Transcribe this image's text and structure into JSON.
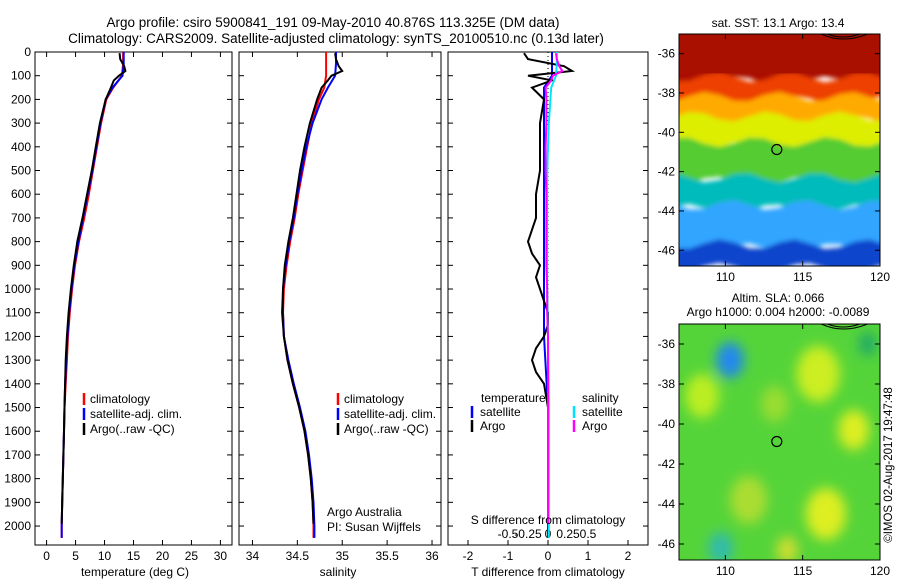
{
  "title_line1": "Argo profile: csiro 5900841_191 09-May-2010 40.876S 113.325E (DM data)",
  "title_line2": "Climatology: CARS2009. Satellite-adjusted climatology: synTS_20100510.nc (0.13d later)",
  "credit": "©IMOS 02-Aug-2017 19:47:48",
  "colors": {
    "climatology": "#ff0000",
    "satellite": "#0000ff",
    "argo": "#000000",
    "salinity_satellite": "#00e5ff",
    "salinity_argo": "#ff00ff"
  },
  "chart_data": [
    {
      "id": "temperature-profile",
      "type": "line",
      "xlabel": "temperature (deg C)",
      "ylabel": "",
      "xlim": [
        -2,
        32
      ],
      "ylim": [
        2080,
        0
      ],
      "xticks": [
        "0",
        "5",
        "10",
        "15",
        "20",
        "25",
        "30"
      ],
      "xtick_values": [
        0,
        5,
        10,
        15,
        20,
        25,
        30
      ],
      "yticks": [
        "0",
        "100",
        "200",
        "300",
        "400",
        "500",
        "600",
        "700",
        "800",
        "900",
        "1000",
        "1100",
        "1200",
        "1300",
        "1400",
        "1500",
        "1600",
        "1700",
        "1800",
        "1900",
        "2000"
      ],
      "ytick_values": [
        0,
        100,
        200,
        300,
        400,
        500,
        600,
        700,
        800,
        900,
        1000,
        1100,
        1200,
        1300,
        1400,
        1500,
        1600,
        1700,
        1800,
        1900,
        2000
      ],
      "legend": [
        "climatology",
        "satellite-adj. clim.",
        "Argo(..raw -QC)"
      ],
      "series": [
        {
          "name": "climatology",
          "depth": [
            0,
            50,
            100,
            150,
            200,
            300,
            400,
            500,
            600,
            700,
            800,
            900,
            1000,
            1100,
            1200,
            1300,
            1400,
            1500,
            1600,
            1700,
            1800,
            1900,
            2000,
            2050
          ],
          "values": [
            13.2,
            13.2,
            13.0,
            11.5,
            10.3,
            9.4,
            8.7,
            8.0,
            7.3,
            6.5,
            5.6,
            4.9,
            4.4,
            4.0,
            3.7,
            3.5,
            3.3,
            3.1,
            3.0,
            2.9,
            2.8,
            2.7,
            2.6,
            2.6
          ]
        },
        {
          "name": "satellite-adj. clim.",
          "depth": [
            0,
            50,
            100,
            150,
            200,
            300,
            400,
            500,
            600,
            700,
            800,
            900,
            1000,
            1100,
            1200,
            1300,
            1400,
            1500,
            1600,
            1700,
            1800,
            1900,
            2000,
            2050
          ],
          "values": [
            13.3,
            13.3,
            13.1,
            11.4,
            10.2,
            9.3,
            8.6,
            7.9,
            7.1,
            6.3,
            5.5,
            4.8,
            4.3,
            3.9,
            3.6,
            3.4,
            3.2,
            3.1,
            3.0,
            2.9,
            2.8,
            2.7,
            2.6,
            2.6
          ]
        },
        {
          "name": "Argo(..raw -QC)",
          "depth": [
            5,
            30,
            60,
            80,
            100,
            120,
            150,
            200,
            300,
            400,
            500,
            600,
            700,
            800,
            900,
            1000,
            1100,
            1200,
            1300,
            1400,
            1500,
            1600,
            1700,
            1800,
            1900,
            1990
          ],
          "values": [
            12.6,
            12.7,
            13.4,
            13.6,
            12.5,
            11.6,
            11.1,
            10.2,
            9.2,
            8.5,
            7.8,
            7.0,
            6.2,
            5.3,
            4.7,
            4.2,
            3.8,
            3.5,
            3.3,
            3.2,
            3.1,
            3.0,
            2.9,
            2.8,
            2.7,
            2.6
          ]
        }
      ]
    },
    {
      "id": "salinity-profile",
      "type": "line",
      "xlabel": "salinity",
      "xlim": [
        33.85,
        36.1
      ],
      "ylim": [
        2080,
        0
      ],
      "xticks": [
        "34",
        "34.5",
        "35",
        "35.5",
        "36"
      ],
      "xtick_values": [
        34,
        34.5,
        35,
        35.5,
        36
      ],
      "legend": [
        "climatology",
        "satellite-adj. clim.",
        "Argo(..raw -QC)"
      ],
      "annotation": [
        "Argo Australia",
        "PI: Susan Wijffels"
      ],
      "series": [
        {
          "name": "climatology",
          "depth": [
            0,
            50,
            100,
            150,
            200,
            300,
            400,
            500,
            600,
            700,
            800,
            900,
            1000,
            1100,
            1200,
            1300,
            1400,
            1500,
            1600,
            1700,
            1800,
            1900,
            2000,
            2050
          ],
          "values": [
            34.82,
            34.82,
            34.82,
            34.8,
            34.74,
            34.66,
            34.61,
            34.56,
            34.51,
            34.47,
            34.42,
            34.38,
            34.35,
            34.34,
            34.35,
            34.39,
            34.45,
            34.52,
            34.58,
            34.62,
            34.65,
            34.67,
            34.68,
            34.68
          ]
        },
        {
          "name": "satellite-adj. clim.",
          "depth": [
            0,
            50,
            100,
            150,
            200,
            300,
            400,
            500,
            600,
            700,
            800,
            900,
            1000,
            1100,
            1200,
            1300,
            1400,
            1500,
            1600,
            1700,
            1800,
            1900,
            2000,
            2050
          ],
          "values": [
            34.93,
            34.93,
            34.92,
            34.84,
            34.77,
            34.67,
            34.6,
            34.55,
            34.5,
            34.46,
            34.41,
            34.37,
            34.34,
            34.34,
            34.35,
            34.4,
            34.46,
            34.53,
            34.59,
            34.63,
            34.66,
            34.68,
            34.69,
            34.69
          ]
        },
        {
          "name": "Argo(..raw -QC)",
          "depth": [
            5,
            30,
            60,
            80,
            100,
            120,
            150,
            200,
            300,
            400,
            500,
            600,
            700,
            800,
            900,
            1000,
            1100,
            1200,
            1300,
            1400,
            1500,
            1600,
            1700,
            1800,
            1900,
            1990
          ],
          "values": [
            34.92,
            34.93,
            34.96,
            35.0,
            34.88,
            34.84,
            34.77,
            34.72,
            34.64,
            34.58,
            34.53,
            34.49,
            34.45,
            34.4,
            34.36,
            34.34,
            34.33,
            34.35,
            34.39,
            34.45,
            34.52,
            34.58,
            34.62,
            34.65,
            34.67,
            34.68
          ]
        }
      ]
    },
    {
      "id": "difference-profile",
      "type": "line",
      "xlabel": "T difference from climatology",
      "top_label": "S difference from climatology",
      "xlim": [
        -2.5,
        2.5
      ],
      "ylim": [
        2080,
        0
      ],
      "xticks": [
        "-2",
        "-1",
        "0",
        "1",
        "2"
      ],
      "xtick_values": [
        -2,
        -1,
        0,
        1,
        2
      ],
      "sticks": [
        "-0.5",
        "-0.25",
        "0",
        "0.25",
        "0.5"
      ],
      "stick_values": [
        -0.5,
        -0.25,
        0,
        0.25,
        0.5
      ],
      "legend_headers": [
        "temperature",
        "salinity"
      ],
      "legend": [
        "satellite",
        "Argo",
        "satellite",
        "Argo"
      ],
      "series": [
        {
          "name": "temperature satellite",
          "depth": [
            0,
            50,
            100,
            150,
            200,
            300,
            500,
            800,
            1000,
            1200,
            1500,
            2000,
            2050
          ],
          "values": [
            0.1,
            0.1,
            0.1,
            -0.1,
            -0.1,
            -0.1,
            -0.1,
            -0.1,
            -0.1,
            -0.1,
            0,
            0,
            0
          ]
        },
        {
          "name": "temperature Argo",
          "depth": [
            5,
            30,
            60,
            80,
            100,
            120,
            150,
            200,
            300,
            400,
            500,
            600,
            700,
            800,
            850,
            900,
            950,
            1000,
            1050,
            1100,
            1150,
            1200,
            1250,
            1300,
            1350,
            1400,
            1500,
            1600,
            1800,
            1990
          ],
          "values": [
            -0.6,
            -0.5,
            0.4,
            0.6,
            -0.5,
            0.1,
            -0.4,
            -0.1,
            -0.2,
            -0.2,
            -0.2,
            -0.3,
            -0.3,
            -0.5,
            -0.4,
            -0.2,
            -0.3,
            -0.2,
            -0.1,
            0,
            0,
            -0.1,
            -0.3,
            -0.4,
            -0.3,
            -0.1,
            0,
            0,
            0,
            0
          ]
        },
        {
          "name": "salinity satellite",
          "depth": [
            0,
            50,
            100,
            150,
            200,
            300,
            500,
            800,
            1000,
            1200,
            1500,
            2000,
            2050
          ],
          "values": [
            0.11,
            0.11,
            0.1,
            0.04,
            0.03,
            0.01,
            -0.01,
            -0.01,
            -0.01,
            0,
            0.01,
            0.01,
            0.01
          ]
        },
        {
          "name": "salinity Argo",
          "depth": [
            5,
            30,
            60,
            80,
            100,
            120,
            150,
            200,
            300,
            400,
            500,
            600,
            700,
            800,
            900,
            1000,
            1100,
            1200,
            1300,
            1400,
            1500,
            1700,
            1900,
            1990
          ],
          "values": [
            0.1,
            0.11,
            0.14,
            0.18,
            0.06,
            0.04,
            -0.03,
            -0.02,
            -0.02,
            -0.03,
            -0.03,
            -0.02,
            -0.02,
            -0.02,
            -0.02,
            -0.01,
            -0.01,
            0,
            0,
            0,
            0,
            0,
            0,
            0
          ]
        }
      ]
    },
    {
      "id": "sst-map",
      "type": "heatmap",
      "title": "sat. SST: 13.1  Argo: 13.4",
      "xlim": [
        107,
        120
      ],
      "ylim": [
        -46.8,
        -35
      ],
      "xticks": [
        "110",
        "115",
        "120"
      ],
      "xtick_values": [
        110,
        115,
        120
      ],
      "yticks": [
        "-36",
        "-38",
        "-40",
        "-42",
        "-44",
        "-46"
      ],
      "ytick_values": [
        -36,
        -38,
        -40,
        -42,
        -44,
        -46
      ],
      "float_position": [
        113.325,
        -40.876
      ],
      "color_bands": [
        {
          "lat_top": -35.0,
          "lat_bottom": -37.3,
          "color": "#aa1000"
        },
        {
          "lat_top": -37.3,
          "lat_bottom": -38.3,
          "color": "#ee4000"
        },
        {
          "lat_top": -38.3,
          "lat_bottom": -39.3,
          "color": "#ffaa00"
        },
        {
          "lat_top": -39.3,
          "lat_bottom": -40.6,
          "color": "#ddee00"
        },
        {
          "lat_top": -40.6,
          "lat_bottom": -42.4,
          "color": "#55cc33"
        },
        {
          "lat_top": -42.4,
          "lat_bottom": -43.8,
          "color": "#00bbbb"
        },
        {
          "lat_top": -43.8,
          "lat_bottom": -45.8,
          "color": "#33a5ff"
        },
        {
          "lat_top": -45.8,
          "lat_bottom": -46.8,
          "color": "#1144cc"
        }
      ]
    },
    {
      "id": "sla-map",
      "type": "heatmap",
      "title_line1": "Altim. SLA: 0.066",
      "title_line2": "Argo h1000: 0.004 h2000: -0.0089",
      "xlim": [
        107,
        120
      ],
      "ylim": [
        -46.8,
        -35
      ],
      "xticks": [
        "110",
        "115",
        "120"
      ],
      "xtick_values": [
        110,
        115,
        120
      ],
      "yticks": [
        "-36",
        "-38",
        "-40",
        "-42",
        "-44",
        "-46"
      ],
      "ytick_values": [
        -36,
        -38,
        -40,
        -42,
        -44,
        -46
      ],
      "float_position": [
        113.325,
        -40.876
      ],
      "base_color": "#55d43a",
      "blobs": [
        {
          "lon": 110.3,
          "lat": -36.8,
          "r": 0.9,
          "color": "#2288ee"
        },
        {
          "lon": 108.5,
          "lat": -38.6,
          "r": 1.1,
          "color": "#bbee22"
        },
        {
          "lon": 116.0,
          "lat": -37.5,
          "r": 1.4,
          "color": "#ccee22"
        },
        {
          "lon": 118.3,
          "lat": -40.3,
          "r": 1.0,
          "color": "#ddee22"
        },
        {
          "lon": 111.5,
          "lat": -43.8,
          "r": 1.2,
          "color": "#aadd33"
        },
        {
          "lon": 116.5,
          "lat": -44.5,
          "r": 1.3,
          "color": "#ddee22"
        },
        {
          "lon": 109.7,
          "lat": -46.2,
          "r": 0.8,
          "color": "#33bbaa"
        },
        {
          "lon": 114.0,
          "lat": -46.3,
          "r": 0.7,
          "color": "#ccdd33"
        },
        {
          "lon": 113.2,
          "lat": -39.0,
          "r": 0.9,
          "color": "#99dd33"
        },
        {
          "lon": 119.2,
          "lat": -36.0,
          "r": 0.6,
          "color": "#22aa66"
        }
      ]
    }
  ]
}
